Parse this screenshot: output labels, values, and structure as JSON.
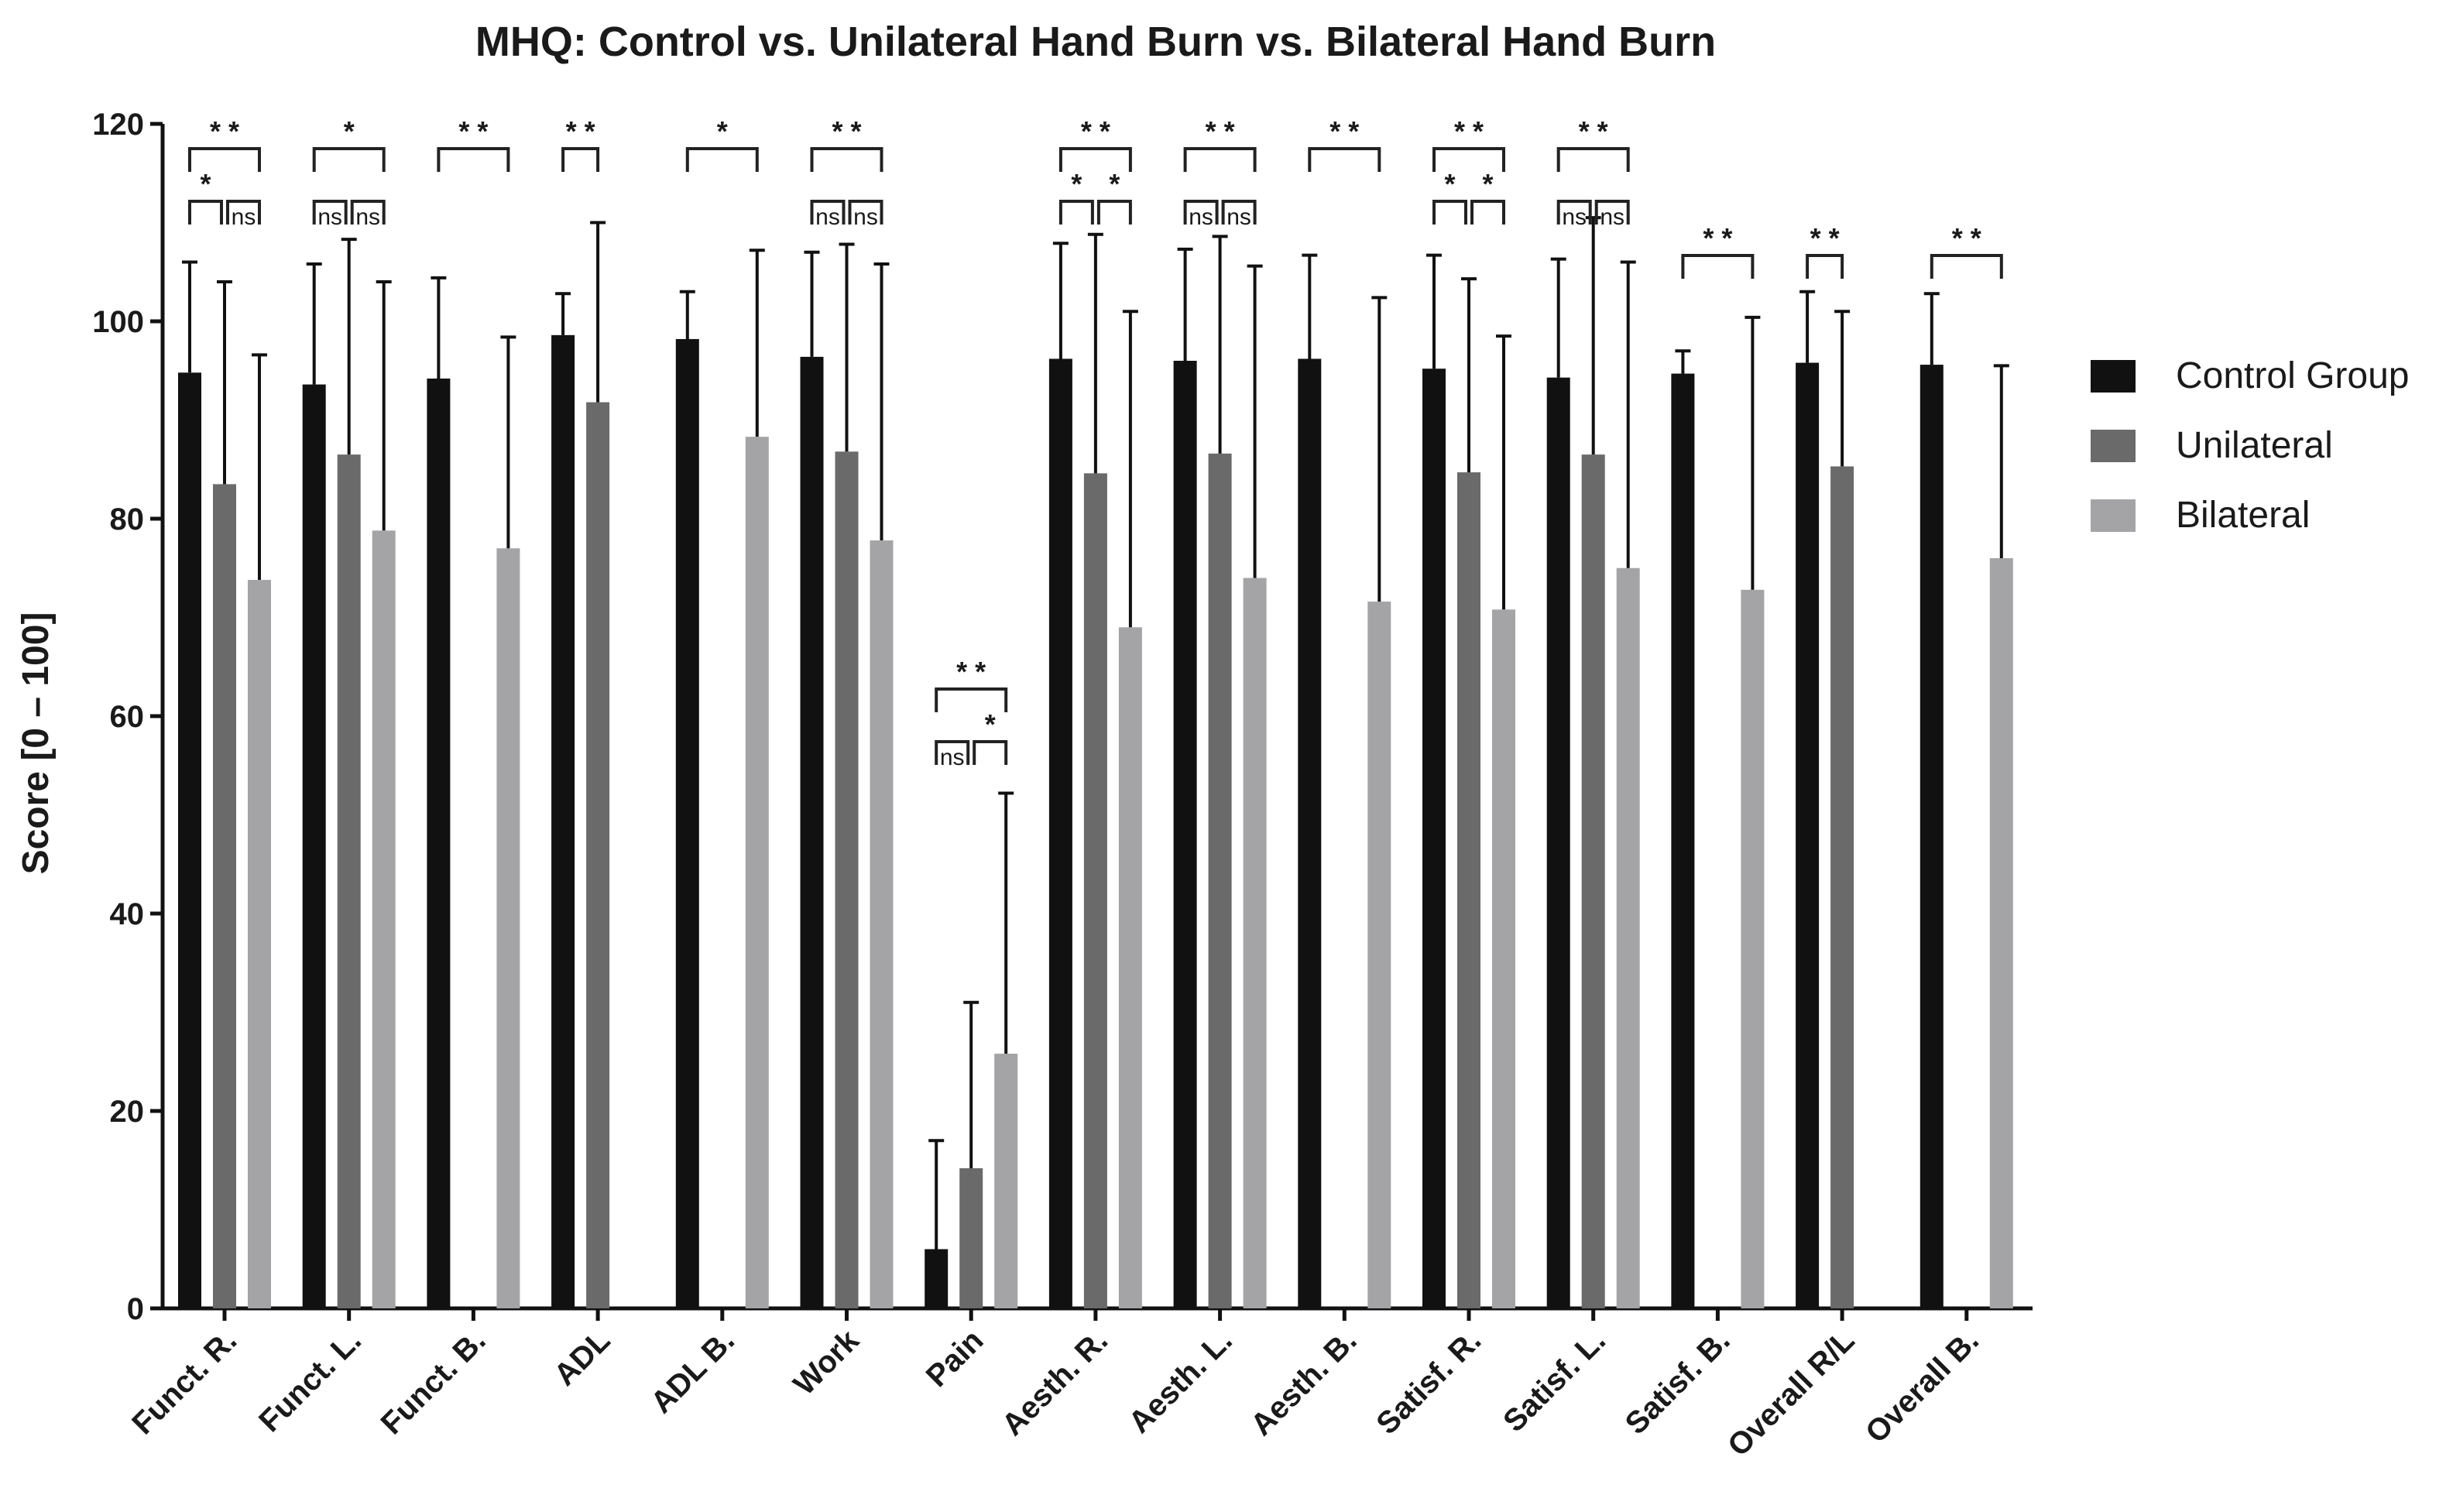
{
  "chart_data": {
    "type": "bar",
    "title": "MHQ: Control vs. Unilateral Hand Burn vs. Bilateral Hand Burn",
    "xlabel": "",
    "ylabel": "Score [0 – 100]",
    "ylim": [
      0,
      120
    ],
    "yticks": [
      0,
      20,
      40,
      60,
      80,
      100,
      120
    ],
    "legend_position": "right",
    "grid": false,
    "categories": [
      "Funct. R.",
      "Funct. L.",
      "Funct. B.",
      "ADL",
      "ADL B.",
      "Work",
      "Pain",
      "Aesth. R.",
      "Aesth. L.",
      "Aesth. B.",
      "Satisf. R.",
      "Satisf. L.",
      "Satisf. B.",
      "Overall R/L",
      "Overall B."
    ],
    "series": [
      {
        "name": "Control Group",
        "color": "#111111",
        "values": [
          94.8,
          93.6,
          94.2,
          98.6,
          98.2,
          96.4,
          6.0,
          96.2,
          96.0,
          96.2,
          95.2,
          94.3,
          94.7,
          95.8,
          95.6
        ],
        "errors": [
          11.2,
          12.2,
          10.2,
          4.2,
          4.8,
          10.6,
          11.0,
          11.7,
          11.3,
          10.5,
          11.5,
          12.0,
          2.3,
          7.2,
          7.2
        ]
      },
      {
        "name": "Unilateral",
        "color": "#6a6a6a",
        "values": [
          83.5,
          86.5,
          null,
          91.8,
          null,
          86.8,
          14.2,
          84.6,
          86.6,
          null,
          84.7,
          86.5,
          null,
          85.3,
          null
        ],
        "errors": [
          20.5,
          21.8,
          null,
          18.2,
          null,
          21.0,
          16.8,
          24.2,
          22.0,
          null,
          19.6,
          24.0,
          null,
          15.7,
          null
        ]
      },
      {
        "name": "Bilateral",
        "color": "#a4a4a6",
        "values": [
          73.8,
          78.8,
          77.0,
          null,
          88.3,
          77.8,
          25.8,
          69.0,
          74.0,
          71.6,
          70.8,
          75.0,
          72.8,
          null,
          76.0
        ],
        "errors": [
          22.8,
          25.2,
          21.4,
          null,
          18.9,
          28.0,
          26.4,
          32.0,
          31.6,
          30.8,
          27.7,
          31.0,
          27.6,
          null,
          19.5
        ]
      }
    ],
    "significance": [
      {
        "cat": 0,
        "pair": "CB",
        "label": "* *",
        "level": "top"
      },
      {
        "cat": 0,
        "pair": "CU",
        "label": "*",
        "level": "low"
      },
      {
        "cat": 0,
        "pair": "UB",
        "label": "ns",
        "level": "low"
      },
      {
        "cat": 1,
        "pair": "CB",
        "label": "*",
        "level": "top"
      },
      {
        "cat": 1,
        "pair": "CU",
        "label": "ns",
        "level": "low"
      },
      {
        "cat": 1,
        "pair": "UB",
        "label": "ns",
        "level": "low"
      },
      {
        "cat": 2,
        "pair": "CB",
        "label": "* *",
        "level": "top"
      },
      {
        "cat": 3,
        "pair": "CU",
        "label": "* *",
        "level": "top"
      },
      {
        "cat": 4,
        "pair": "CB",
        "label": "*",
        "level": "top"
      },
      {
        "cat": 5,
        "pair": "CB",
        "label": "* *",
        "level": "top"
      },
      {
        "cat": 5,
        "pair": "CU",
        "label": "ns",
        "level": "low"
      },
      {
        "cat": 5,
        "pair": "UB",
        "label": "ns",
        "level": "low"
      },
      {
        "cat": 6,
        "pair": "CB",
        "label": "* *",
        "level": "top"
      },
      {
        "cat": 6,
        "pair": "CU",
        "label": "ns",
        "level": "low"
      },
      {
        "cat": 6,
        "pair": "UB",
        "label": "*",
        "level": "low"
      },
      {
        "cat": 7,
        "pair": "CB",
        "label": "* *",
        "level": "top"
      },
      {
        "cat": 7,
        "pair": "CU",
        "label": "*",
        "level": "low"
      },
      {
        "cat": 7,
        "pair": "UB",
        "label": "*",
        "level": "low"
      },
      {
        "cat": 8,
        "pair": "CB",
        "label": "* *",
        "level": "top"
      },
      {
        "cat": 8,
        "pair": "CU",
        "label": "ns",
        "level": "low"
      },
      {
        "cat": 8,
        "pair": "UB",
        "label": "ns",
        "level": "low"
      },
      {
        "cat": 9,
        "pair": "CB",
        "label": "* *",
        "level": "top"
      },
      {
        "cat": 10,
        "pair": "CB",
        "label": "* *",
        "level": "top"
      },
      {
        "cat": 10,
        "pair": "CU",
        "label": "*",
        "level": "low"
      },
      {
        "cat": 10,
        "pair": "UB",
        "label": "*",
        "level": "low"
      },
      {
        "cat": 11,
        "pair": "CB",
        "label": "* *",
        "level": "top"
      },
      {
        "cat": 11,
        "pair": "CU",
        "label": "ns",
        "level": "low"
      },
      {
        "cat": 11,
        "pair": "UB",
        "label": "ns",
        "level": "low"
      },
      {
        "cat": 12,
        "pair": "CB",
        "label": "* *",
        "level": "mid"
      },
      {
        "cat": 13,
        "pair": "CU",
        "label": "* *",
        "level": "mid"
      },
      {
        "cat": 14,
        "pair": "CB",
        "label": "* *",
        "level": "mid"
      }
    ]
  }
}
